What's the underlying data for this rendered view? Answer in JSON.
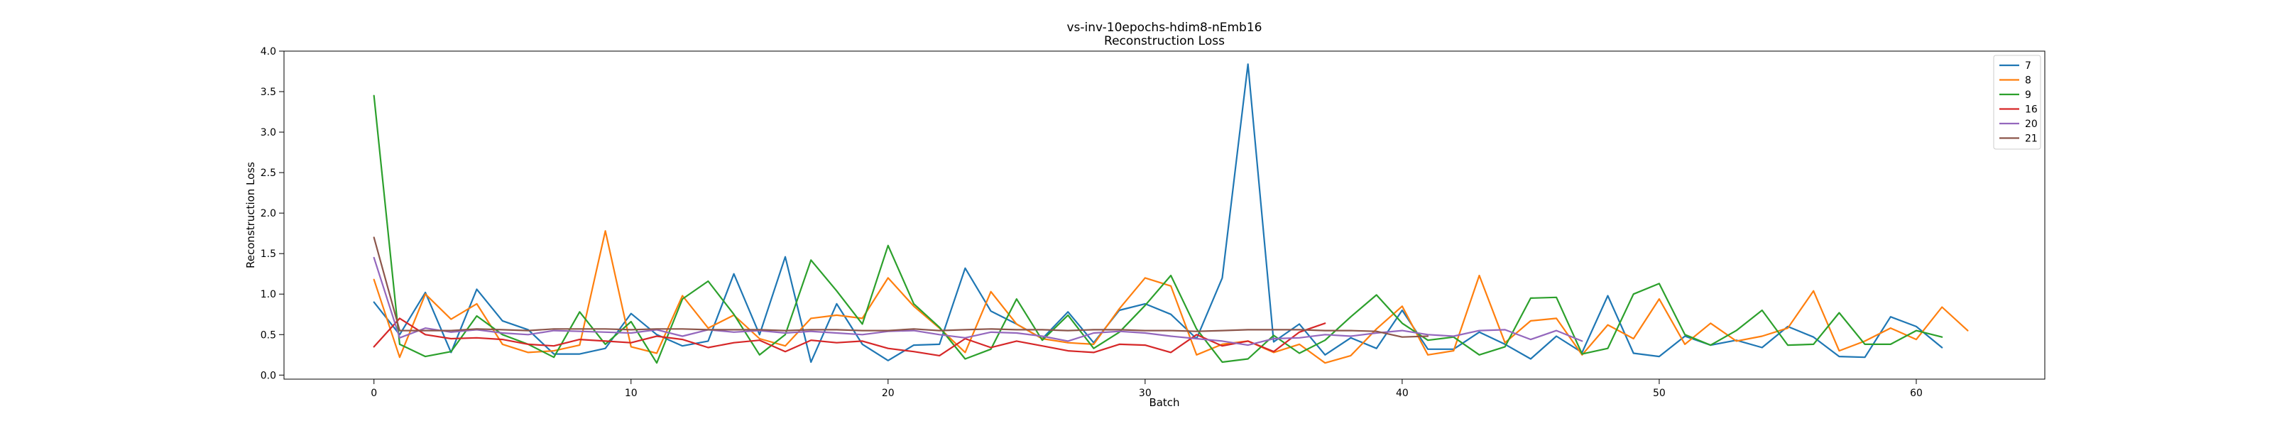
{
  "chart_data": {
    "type": "line",
    "title": "vs-inv-10epochs-hdim8-nEmb16",
    "subtitle": "Reconstruction Loss",
    "xlabel": "Batch",
    "ylabel": "Reconstruction Loss",
    "xlim": [
      -3.5,
      65
    ],
    "ylim": [
      -0.05,
      4.0
    ],
    "xticks": [
      0,
      10,
      20,
      30,
      40,
      50,
      60
    ],
    "yticks": [
      0.0,
      0.5,
      1.0,
      1.5,
      2.0,
      2.5,
      3.0,
      3.5,
      4.0
    ],
    "grid": false,
    "legend_position": "top-right",
    "series": [
      {
        "name": "7",
        "color": "#1f77b4",
        "values": [
          0.9,
          0.5,
          1.02,
          0.28,
          1.06,
          0.67,
          0.56,
          0.26,
          0.26,
          0.33,
          0.76,
          0.5,
          0.36,
          0.42,
          1.25,
          0.5,
          1.46,
          0.16,
          0.88,
          0.38,
          0.18,
          0.37,
          0.38,
          1.32,
          0.79,
          0.63,
          0.45,
          0.78,
          0.4,
          0.8,
          0.88,
          0.75,
          0.45,
          1.2,
          3.84,
          0.41,
          0.63,
          0.25,
          0.46,
          0.33,
          0.8,
          0.32,
          0.32,
          0.53,
          0.38,
          0.2,
          0.48,
          0.28,
          0.98,
          0.27,
          0.23,
          0.48,
          0.37,
          0.43,
          0.34,
          0.6,
          0.47,
          0.23,
          0.22,
          0.72,
          0.6,
          0.34
        ]
      },
      {
        "name": "8",
        "color": "#ff7f0e",
        "values": [
          1.18,
          0.22,
          1.0,
          0.69,
          0.88,
          0.38,
          0.28,
          0.3,
          0.37,
          1.78,
          0.35,
          0.27,
          0.98,
          0.58,
          0.74,
          0.45,
          0.36,
          0.7,
          0.74,
          0.7,
          1.2,
          0.85,
          0.58,
          0.28,
          1.03,
          0.63,
          0.45,
          0.4,
          0.38,
          0.82,
          1.2,
          1.1,
          0.25,
          0.38,
          0.42,
          0.28,
          0.38,
          0.15,
          0.24,
          0.57,
          0.85,
          0.25,
          0.3,
          1.23,
          0.4,
          0.67,
          0.7,
          0.25,
          0.62,
          0.45,
          0.94,
          0.38,
          0.64,
          0.42,
          0.48,
          0.58,
          1.04,
          0.3,
          0.42,
          0.58,
          0.44,
          0.84,
          0.55
        ]
      },
      {
        "name": "9",
        "color": "#2ca02c",
        "values": [
          3.45,
          0.38,
          0.23,
          0.29,
          0.73,
          0.5,
          0.38,
          0.22,
          0.78,
          0.38,
          0.66,
          0.15,
          0.94,
          1.16,
          0.75,
          0.25,
          0.5,
          1.42,
          1.04,
          0.63,
          1.6,
          0.88,
          0.59,
          0.2,
          0.32,
          0.94,
          0.43,
          0.74,
          0.33,
          0.53,
          0.86,
          1.23,
          0.57,
          0.16,
          0.2,
          0.49,
          0.27,
          0.43,
          0.72,
          0.99,
          0.64,
          0.43,
          0.47,
          0.25,
          0.35,
          0.95,
          0.96,
          0.26,
          0.33,
          1.0,
          1.13,
          0.5,
          0.37,
          0.55,
          0.8,
          0.37,
          0.38,
          0.77,
          0.38,
          0.38,
          0.55,
          0.47
        ]
      },
      {
        "name": "16",
        "color": "#d62728",
        "values": [
          0.35,
          0.7,
          0.5,
          0.45,
          0.46,
          0.44,
          0.38,
          0.36,
          0.44,
          0.42,
          0.4,
          0.48,
          0.44,
          0.34,
          0.4,
          0.43,
          0.29,
          0.43,
          0.4,
          0.42,
          0.33,
          0.29,
          0.24,
          0.45,
          0.34,
          0.42,
          0.36,
          0.3,
          0.28,
          0.38,
          0.37,
          0.28,
          0.5,
          0.36,
          0.42,
          0.29,
          0.53,
          0.64
        ]
      },
      {
        "name": "20",
        "color": "#9467bd",
        "values": [
          1.45,
          0.46,
          0.58,
          0.53,
          0.56,
          0.52,
          0.5,
          0.55,
          0.54,
          0.53,
          0.52,
          0.56,
          0.48,
          0.56,
          0.53,
          0.55,
          0.52,
          0.54,
          0.52,
          0.5,
          0.54,
          0.55,
          0.5,
          0.46,
          0.53,
          0.52,
          0.48,
          0.42,
          0.52,
          0.54,
          0.52,
          0.48,
          0.45,
          0.42,
          0.37,
          0.45,
          0.46,
          0.5,
          0.48,
          0.52,
          0.55,
          0.5,
          0.48,
          0.55,
          0.56,
          0.44,
          0.55,
          0.42
        ]
      },
      {
        "name": "21",
        "color": "#8c564b",
        "values": [
          1.7,
          0.55,
          0.55,
          0.55,
          0.57,
          0.56,
          0.55,
          0.57,
          0.57,
          0.57,
          0.56,
          0.57,
          0.57,
          0.56,
          0.56,
          0.56,
          0.55,
          0.56,
          0.56,
          0.55,
          0.55,
          0.57,
          0.55,
          0.56,
          0.57,
          0.56,
          0.56,
          0.55,
          0.56,
          0.56,
          0.55,
          0.55,
          0.54,
          0.55,
          0.56,
          0.56,
          0.56,
          0.55,
          0.55,
          0.54,
          0.47,
          0.48
        ]
      }
    ]
  }
}
